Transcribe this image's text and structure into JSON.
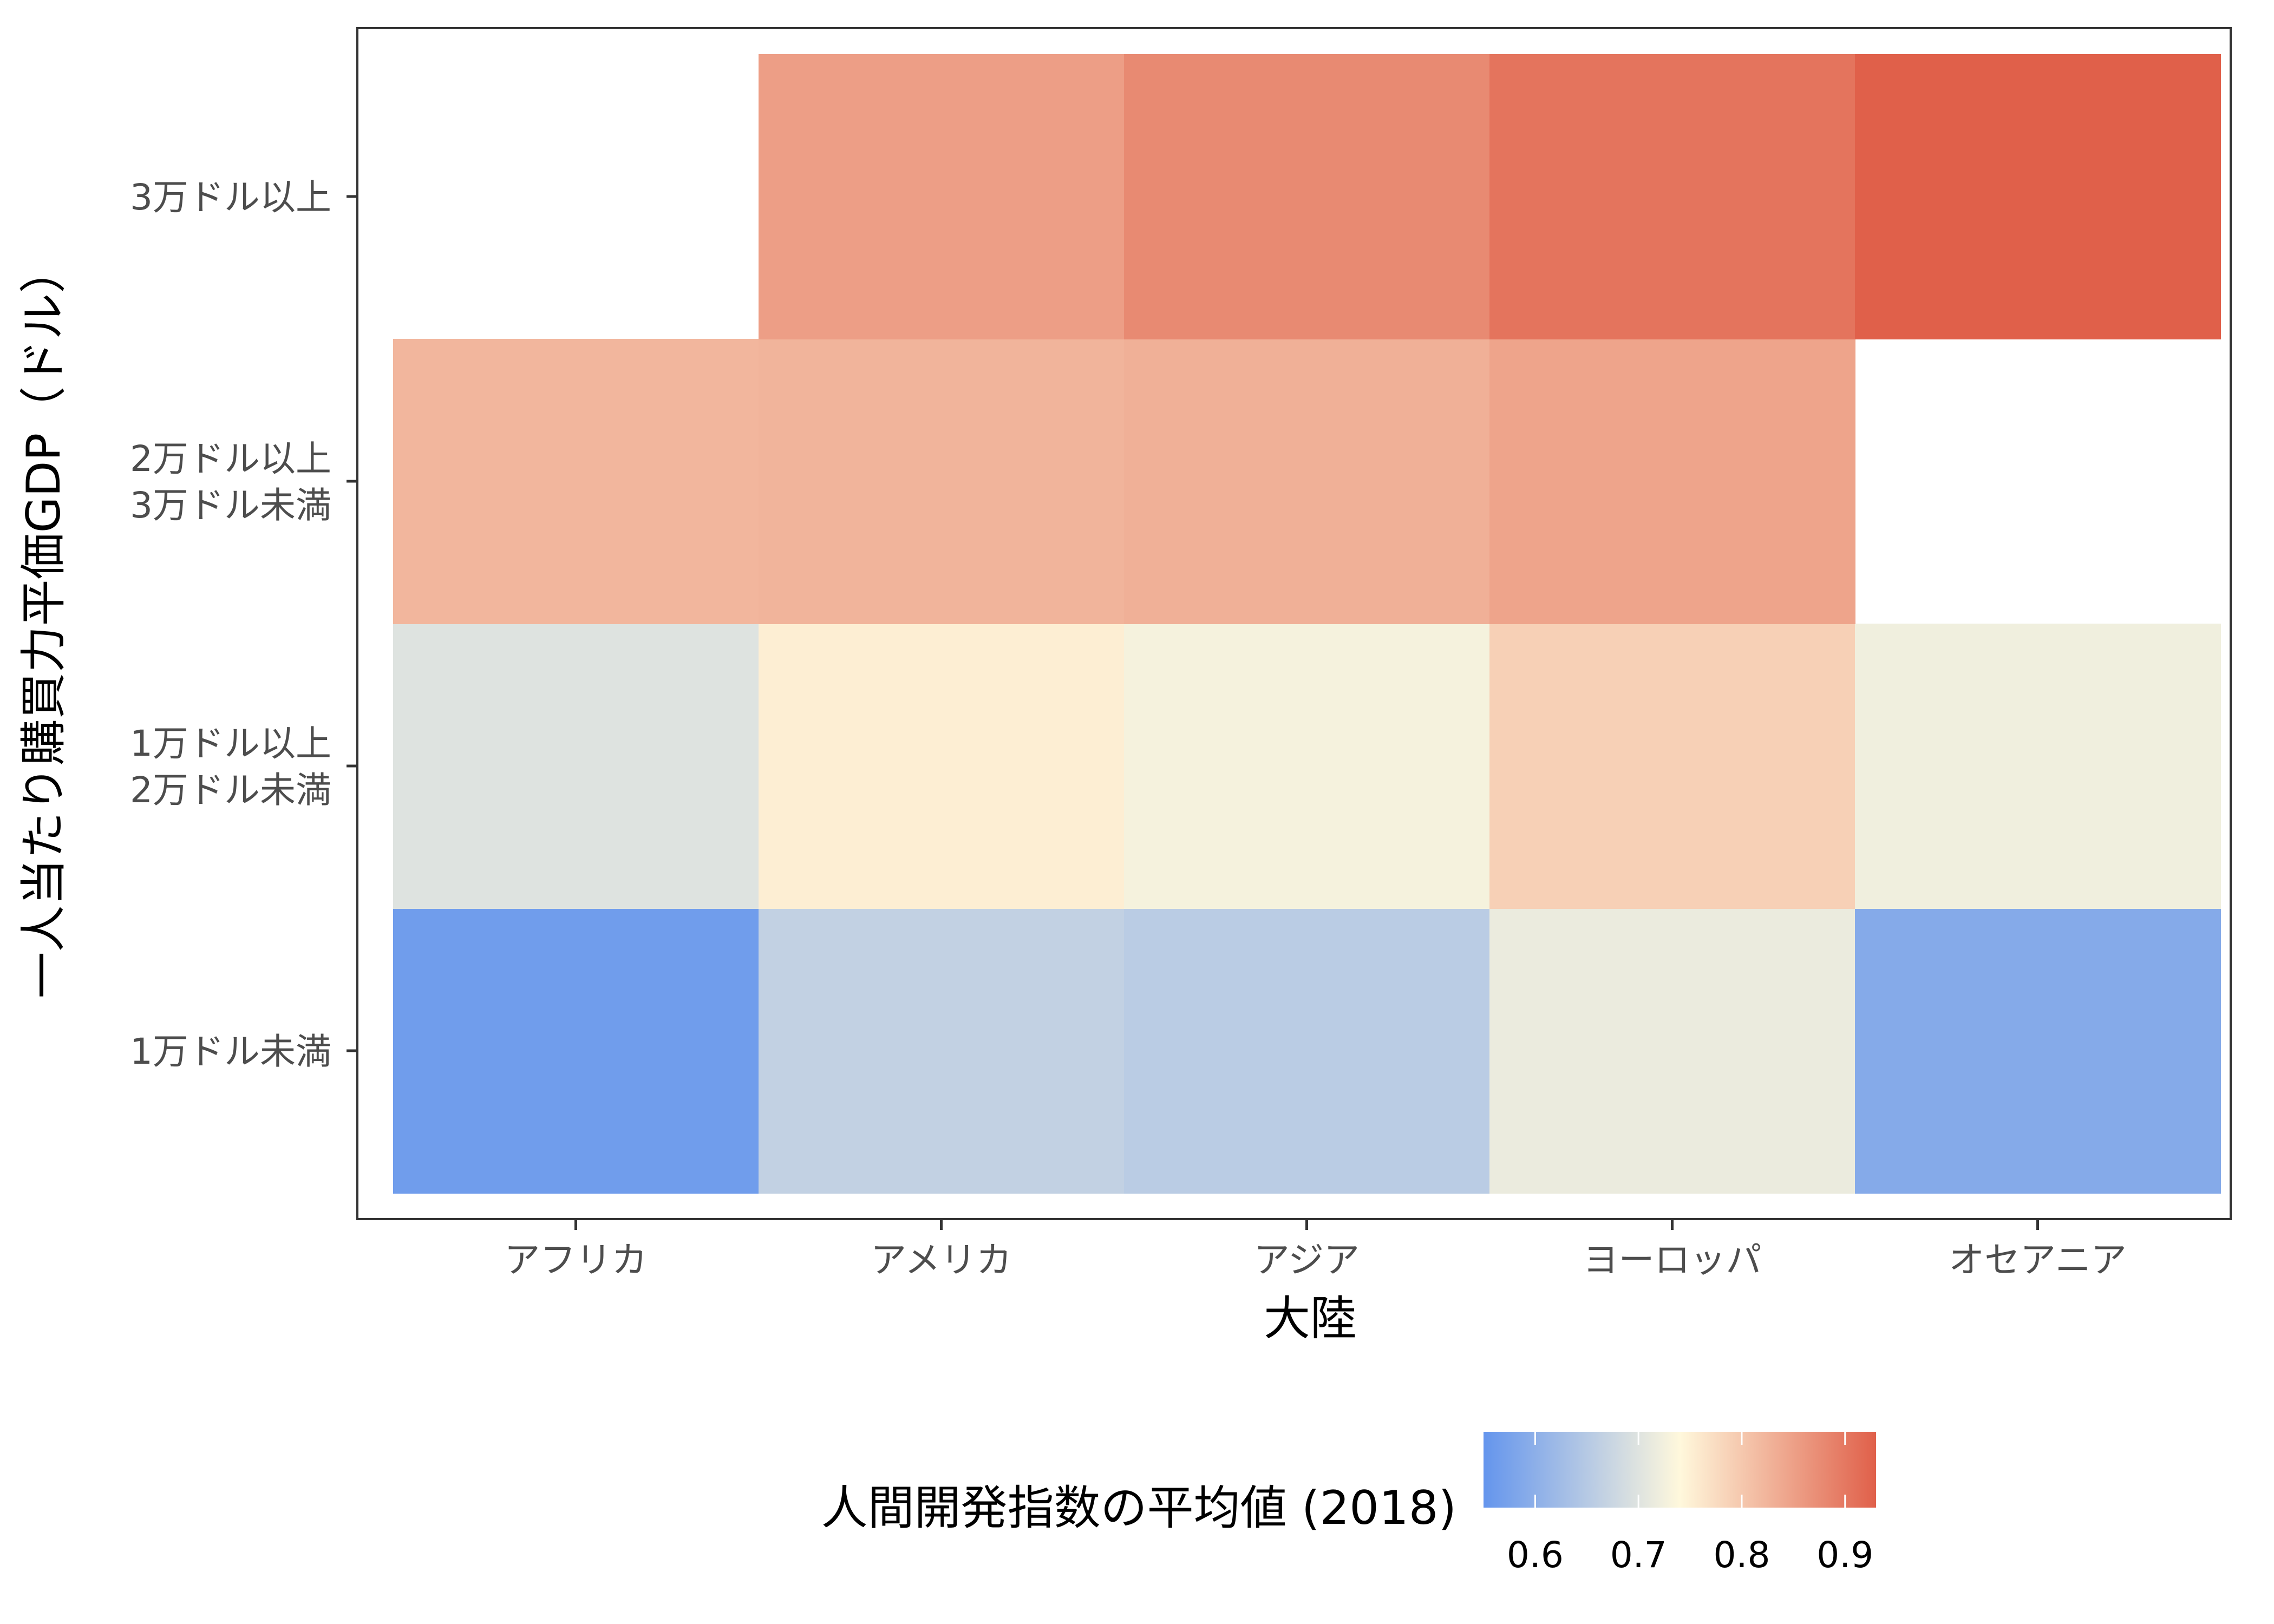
{
  "chart_data": {
    "type": "heatmap",
    "x_categories": [
      "アフリカ",
      "アメリカ",
      "アジア",
      "ヨーロッパ",
      "オセアニア"
    ],
    "y_categories": [
      [
        "1万ドル未満"
      ],
      [
        "1万ドル以上",
        "2万ドル未満"
      ],
      [
        "2万ドル以上",
        "3万ドル未満"
      ],
      [
        "3万ドル以上"
      ]
    ],
    "values": [
      [
        0.565,
        0.665,
        0.655,
        0.715,
        0.59
      ],
      [
        0.7,
        0.752,
        0.728,
        0.79,
        0.722
      ],
      [
        0.822,
        0.825,
        0.83,
        0.845,
        null
      ],
      [
        null,
        0.852,
        0.878,
        0.905,
        0.93
      ]
    ],
    "xlabel": "大陸",
    "ylabel": "一人当たり購買力平価GDP（ドル）",
    "legend": {
      "title": "人間開発指数の平均値 (2018)",
      "position": "bottom",
      "range": [
        0.55,
        0.93
      ],
      "ticks": [
        "0.6",
        "0.7",
        "0.8",
        "0.9"
      ],
      "colors": {
        "low": "#6495ED",
        "mid": "#FFF8DC",
        "high": "#E0604A"
      }
    },
    "grid": false
  }
}
